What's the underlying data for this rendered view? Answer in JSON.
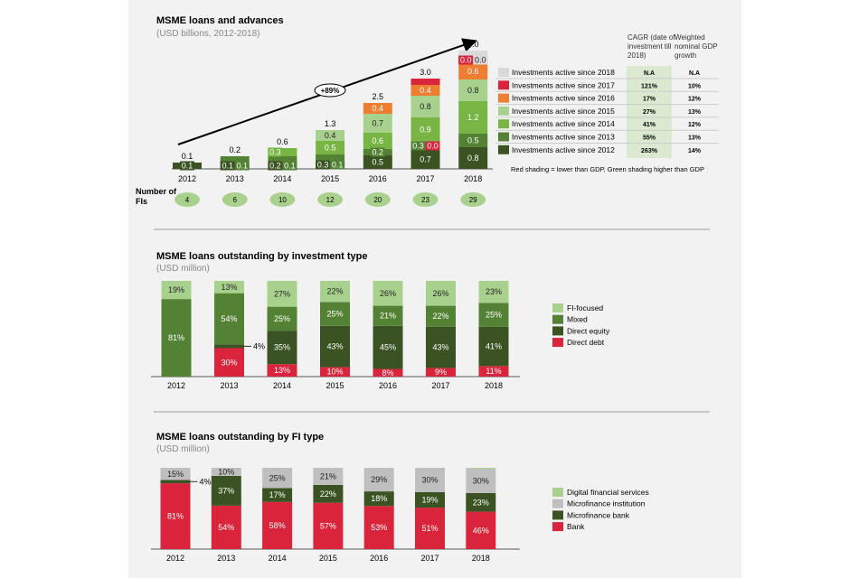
{
  "chart_data": [
    {
      "type": "bar",
      "stacked": true,
      "title": "MSME loans and advances",
      "subtitle": "(USD billions, 2012-2018)",
      "categories": [
        "2012",
        "2013",
        "2014",
        "2015",
        "2016",
        "2017",
        "2018"
      ],
      "totals": [
        "0.1",
        "0.2",
        "0.6",
        "1.3",
        "2.5",
        "3.0",
        "4.0"
      ],
      "series": [
        {
          "name": "Investments active since 2012",
          "color": "#3b5323",
          "values": [
            0.1,
            0.1,
            0.2,
            0.3,
            0.5,
            0.7,
            0.8
          ]
        },
        {
          "name": "Investments active since 2013",
          "color": "#548235",
          "values": [
            null,
            0.1,
            0.1,
            0.1,
            0.2,
            0.3,
            0.5
          ]
        },
        {
          "name": "Investments active since 2014",
          "color": "#78b545",
          "values": [
            null,
            null,
            0.3,
            0.5,
            0.6,
            0.9,
            1.2
          ]
        },
        {
          "name": "Investments active since 2015",
          "color": "#a9d18e",
          "values": [
            null,
            null,
            null,
            0.4,
            0.7,
            0.8,
            0.8
          ]
        },
        {
          "name": "Investments active since 2016",
          "color": "#ed7d31",
          "values": [
            null,
            null,
            null,
            null,
            0.4,
            0.4,
            0.6
          ]
        },
        {
          "name": "Investments active since 2017",
          "color": "#d9243b",
          "values": [
            null,
            null,
            null,
            null,
            null,
            0.0,
            0.0
          ]
        },
        {
          "name": "Investments active since 2018",
          "color": "#d9d9d9",
          "values": [
            null,
            null,
            null,
            null,
            null,
            null,
            0.0
          ]
        }
      ],
      "trend_annotation": "+89%",
      "fi_count_label": "Number of FIs",
      "fi_counts": [
        "4",
        "6",
        "10",
        "12",
        "20",
        "23",
        "29"
      ],
      "table": {
        "col_cagr": "CAGR (date of investment till 2018)",
        "col_gdp": "Weighted nominal GDP growth",
        "rows": [
          {
            "label": "Investments active since 2018",
            "color": "#d9d9d9",
            "cagr": "N.A",
            "gdp": "N.A"
          },
          {
            "label": "Investments active since 2017",
            "color": "#d9243b",
            "cagr": "121%",
            "gdp": "10%"
          },
          {
            "label": "Investments active since 2016",
            "color": "#ed7d31",
            "cagr": "17%",
            "gdp": "12%"
          },
          {
            "label": "Investments active since 2015",
            "color": "#a9d18e",
            "cagr": "27%",
            "gdp": "13%"
          },
          {
            "label": "Investments active since 2014",
            "color": "#78b545",
            "cagr": "41%",
            "gdp": "12%"
          },
          {
            "label": "Investments active since 2013",
            "color": "#548235",
            "cagr": "55%",
            "gdp": "13%"
          },
          {
            "label": "Investments active since 2012",
            "color": "#3b5323",
            "cagr": "263%",
            "gdp": "14%"
          }
        ],
        "note": "Red shading = lower than GDP, Green shading higher than GDP",
        "cagr_shade": "#dbe9d0"
      }
    },
    {
      "type": "bar",
      "stacked": true,
      "percent": true,
      "title": "MSME loans outstanding by investment type",
      "subtitle": "(USD million)",
      "categories": [
        "2012",
        "2013",
        "2014",
        "2015",
        "2016",
        "2017",
        "2018"
      ],
      "legend_position": "right",
      "series": [
        {
          "name": "Direct debt",
          "color": "#d9243b",
          "values": [
            0,
            30,
            13,
            10,
            8,
            9,
            11
          ]
        },
        {
          "name": "Direct equity",
          "color": "#3b5323",
          "values": [
            0,
            4,
            35,
            43,
            45,
            43,
            41
          ]
        },
        {
          "name": "Mixed",
          "color": "#548235",
          "values": [
            81,
            54,
            25,
            25,
            21,
            22,
            25
          ]
        },
        {
          "name": "FI-focused",
          "color": "#a9d18e",
          "values": [
            19,
            13,
            27,
            22,
            26,
            26,
            23
          ]
        }
      ]
    },
    {
      "type": "bar",
      "stacked": true,
      "percent": true,
      "title": "MSME loans outstanding by FI type",
      "subtitle": "(USD million)",
      "categories": [
        "2012",
        "2013",
        "2014",
        "2015",
        "2016",
        "2017",
        "2018"
      ],
      "legend_position": "right",
      "series": [
        {
          "name": "Bank",
          "color": "#d9243b",
          "values": [
            81,
            54,
            58,
            57,
            53,
            51,
            46
          ]
        },
        {
          "name": "Microfinance bank",
          "color": "#3b5323",
          "values": [
            4,
            37,
            17,
            22,
            18,
            19,
            23
          ]
        },
        {
          "name": "Microfinance institution",
          "color": "#bfbfbf",
          "values": [
            15,
            10,
            25,
            21,
            29,
            30,
            30
          ]
        },
        {
          "name": "Digital financial services",
          "color": "#a9d18e",
          "values": [
            0,
            0,
            0,
            0,
            0,
            0,
            1
          ],
          "unlabeled": true
        }
      ]
    }
  ]
}
